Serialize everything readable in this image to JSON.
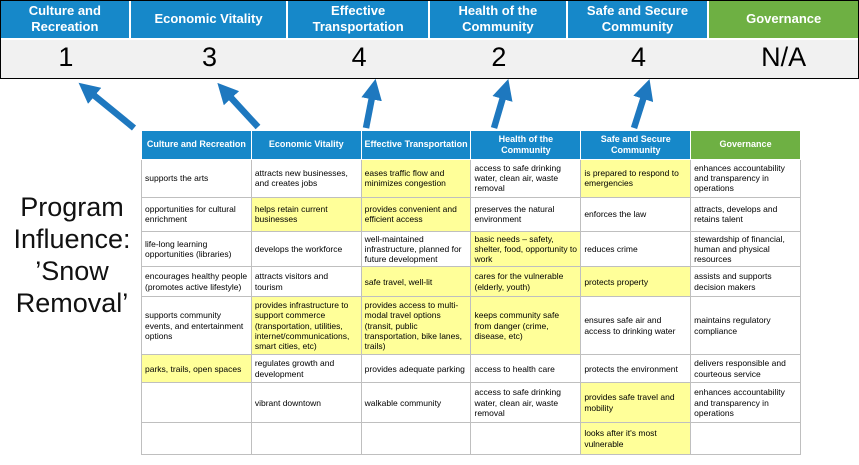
{
  "title": {
    "lines": [
      "Program",
      "Influence:",
      "’Snow",
      "Removal’"
    ]
  },
  "colors": {
    "header_blue": "#1688c9",
    "header_green": "#6eb043",
    "highlight_yellow": "#ffff99",
    "arrow_blue": "#1e78bf",
    "score_bg": "#f1f1f1"
  },
  "scorecard": {
    "columns": [
      {
        "label": "Culture and Recreation",
        "score": "1",
        "color": "blue",
        "has_arrow": true
      },
      {
        "label": "Economic Vitality",
        "score": "3",
        "color": "blue",
        "has_arrow": true
      },
      {
        "label": "Effective Transportation",
        "score": "4",
        "color": "blue",
        "has_arrow": true
      },
      {
        "label": "Health of the Community",
        "score": "2",
        "color": "blue",
        "has_arrow": true
      },
      {
        "label": "Safe and Secure Community",
        "score": "4",
        "color": "blue",
        "has_arrow": true
      },
      {
        "label": "Governance",
        "score": "N/A",
        "color": "green",
        "has_arrow": false
      }
    ]
  },
  "table": {
    "headers": [
      {
        "label": "Culture and Recreation",
        "color": "blue"
      },
      {
        "label": "Economic Vitality",
        "color": "blue"
      },
      {
        "label": "Effective Transportation",
        "color": "blue"
      },
      {
        "label": "Health of the Community",
        "color": "blue"
      },
      {
        "label": "Safe and Secure Community",
        "color": "blue"
      },
      {
        "label": "Governance",
        "color": "green"
      }
    ],
    "rows": [
      {
        "cells": [
          {
            "text": "supports the arts",
            "highlight": false
          },
          {
            "text": "attracts new businesses, and creates jobs",
            "highlight": false
          },
          {
            "text": "eases traffic flow and minimizes congestion",
            "highlight": true
          },
          {
            "text": "access to safe drinking water, clean air, waste removal",
            "highlight": false
          },
          {
            "text": "is prepared to respond to emergencies",
            "highlight": true
          },
          {
            "text": "enhances accountability and transparency in operations",
            "highlight": false
          }
        ]
      },
      {
        "cells": [
          {
            "text": "opportunities for cultural enrichment",
            "highlight": false
          },
          {
            "text": "helps retain current businesses",
            "highlight": true
          },
          {
            "text": "provides convenient and efficient access",
            "highlight": true
          },
          {
            "text": "preserves the natural environment",
            "highlight": false
          },
          {
            "text": "enforces the law",
            "highlight": false
          },
          {
            "text": "attracts, develops and retains talent",
            "highlight": false
          }
        ]
      },
      {
        "cells": [
          {
            "text": "life-long learning opportunities (libraries)",
            "highlight": false
          },
          {
            "text": "develops the workforce",
            "highlight": false
          },
          {
            "text": "well-maintained infrastructure, planned for future development",
            "highlight": false
          },
          {
            "text": "basic needs – safety, shelter, food, opportunity to work",
            "highlight": true
          },
          {
            "text": "reduces crime",
            "highlight": false
          },
          {
            "text": "stewardship of financial, human and physical resources",
            "highlight": false
          }
        ]
      },
      {
        "cells": [
          {
            "text": "encourages healthy people (promotes active lifestyle)",
            "highlight": false
          },
          {
            "text": "attracts visitors and tourism",
            "highlight": false
          },
          {
            "text": "safe travel, well-lit",
            "highlight": true
          },
          {
            "text": "cares for the vulnerable (elderly, youth)",
            "highlight": true
          },
          {
            "text": "protects property",
            "highlight": true
          },
          {
            "text": "assists and supports decision makers",
            "highlight": false
          }
        ]
      },
      {
        "cells": [
          {
            "text": "supports community events, and entertainment options",
            "highlight": false
          },
          {
            "text": "provides infrastructure to support commerce (transportation, utilities, internet/communications, smart cities, etc)",
            "highlight": true
          },
          {
            "text": "provides access to multi-modal travel options (transit, public transportation, bike lanes, trails)",
            "highlight": true
          },
          {
            "text": "keeps community safe from danger (crime, disease, etc)",
            "highlight": true
          },
          {
            "text": "ensures safe air and access to drinking water",
            "highlight": false
          },
          {
            "text": "maintains regulatory compliance",
            "highlight": false
          }
        ]
      },
      {
        "cells": [
          {
            "text": "parks, trails, open spaces",
            "highlight": true
          },
          {
            "text": "regulates growth and development",
            "highlight": false
          },
          {
            "text": "provides adequate parking",
            "highlight": false
          },
          {
            "text": "access to health care",
            "highlight": false
          },
          {
            "text": "protects the environment",
            "highlight": false
          },
          {
            "text": "delivers responsible and courteous service",
            "highlight": false
          }
        ]
      },
      {
        "cells": [
          {
            "text": "",
            "highlight": false
          },
          {
            "text": "vibrant downtown",
            "highlight": false
          },
          {
            "text": "walkable community",
            "highlight": false
          },
          {
            "text": "access to safe drinking water, clean air, waste removal",
            "highlight": false
          },
          {
            "text": "provides safe travel and mobility",
            "highlight": true
          },
          {
            "text": "enhances accountability and transparency in operations",
            "highlight": false
          }
        ]
      },
      {
        "cells": [
          {
            "text": "",
            "highlight": false
          },
          {
            "text": "",
            "highlight": false
          },
          {
            "text": "",
            "highlight": false
          },
          {
            "text": "",
            "highlight": false
          },
          {
            "text": "looks after it's most vulnerable",
            "highlight": true
          },
          {
            "text": "",
            "highlight": false
          }
        ]
      }
    ]
  }
}
